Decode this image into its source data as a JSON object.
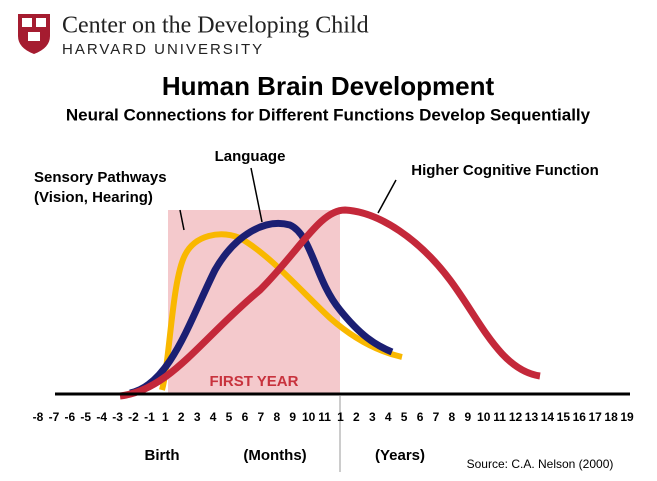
{
  "header": {
    "org": "Center on the Developing Child",
    "university": "HARVARD UNIVERSITY"
  },
  "title": "Human Brain Development",
  "subtitle": "Neural Connections for Different Functions Develop Sequentially",
  "labels": {
    "sensory": "Sensory Pathways",
    "sensory_detail": "(Vision, Hearing)",
    "language": "Language",
    "cognitive": "Higher Cognitive Function",
    "first_year": "FIRST YEAR"
  },
  "axis": {
    "ticks": [
      "-8",
      "-7",
      "-6",
      "-5",
      "-4",
      "-3",
      "-2",
      "-1",
      "1",
      "2",
      "3",
      "4",
      "5",
      "6",
      "7",
      "8",
      "9",
      "10",
      "11",
      "1",
      "2",
      "3",
      "4",
      "5",
      "6",
      "7",
      "8",
      "9",
      "10",
      "11",
      "12",
      "13",
      "14",
      "15",
      "16",
      "17",
      "18",
      "19"
    ],
    "birth": "Birth",
    "months": "(Months)",
    "years": "(Years)"
  },
  "source": "Source: C.A. Nelson (2000)"
}
